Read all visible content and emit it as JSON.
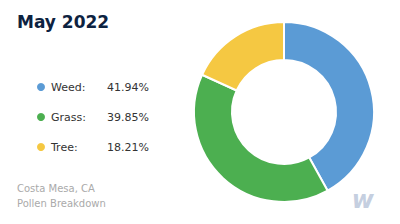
{
  "chart_data": {
    "type": "pie",
    "title": "May 2022",
    "subtitle": "Costa Mesa, CA\nPollen Breakdown",
    "categories": [
      "Weed:",
      "Grass:",
      "Tree:"
    ],
    "values": [
      41.94,
      39.85,
      18.21
    ],
    "value_labels": [
      "41.94%",
      "39.85%",
      "18.21%"
    ],
    "colors": [
      "#5b9bd5",
      "#4caf50",
      "#f5c842"
    ],
    "legend": "left",
    "annotations": [
      "w"
    ]
  }
}
